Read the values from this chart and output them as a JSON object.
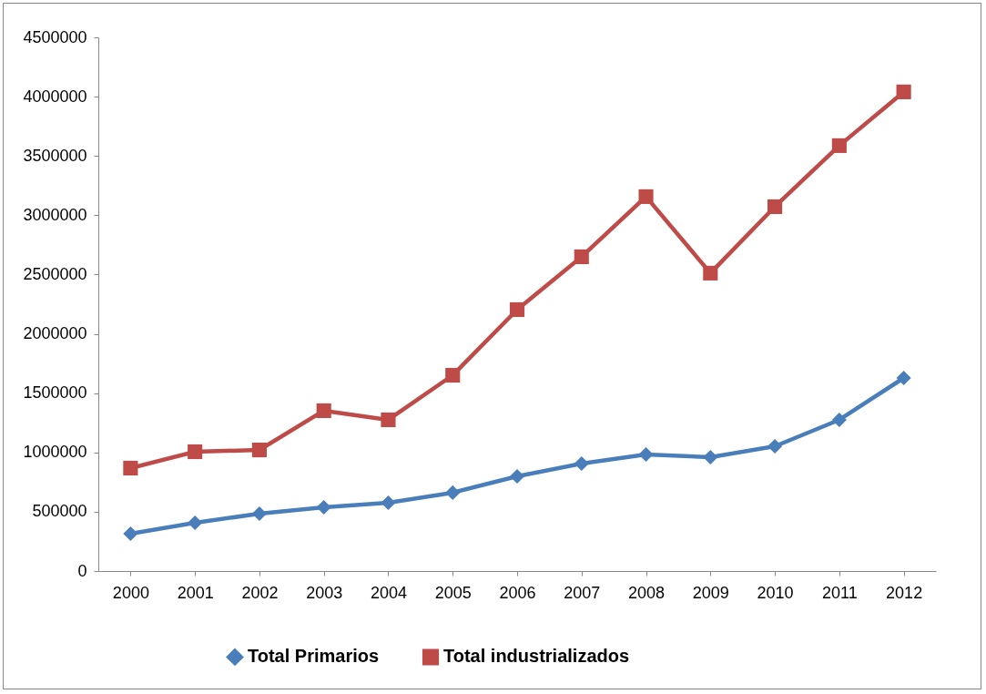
{
  "chart_data": {
    "type": "line",
    "categories": [
      "2000",
      "2001",
      "2002",
      "2003",
      "2004",
      "2005",
      "2006",
      "2007",
      "2008",
      "2009",
      "2010",
      "2011",
      "2012"
    ],
    "series": [
      {
        "name": "Total Primarios",
        "color": "#4a7ebb",
        "marker": "diamond",
        "values": [
          315000,
          407000,
          484000,
          538000,
          576000,
          661000,
          799000,
          906000,
          983000,
          960000,
          1052000,
          1275000,
          1628000
        ]
      },
      {
        "name": "Total industrializados",
        "color": "#be4b48",
        "marker": "square",
        "values": [
          868000,
          1006000,
          1021000,
          1352000,
          1275000,
          1651000,
          2204000,
          2650000,
          3157000,
          2512000,
          3072000,
          3587000,
          4040000
        ]
      }
    ],
    "ylim": [
      0,
      4500000
    ],
    "yticks": [
      0,
      500000,
      1000000,
      1500000,
      2000000,
      2500000,
      3000000,
      3500000,
      4000000,
      4500000
    ],
    "grid": false,
    "legend": "bottom",
    "line_style": "solid"
  }
}
